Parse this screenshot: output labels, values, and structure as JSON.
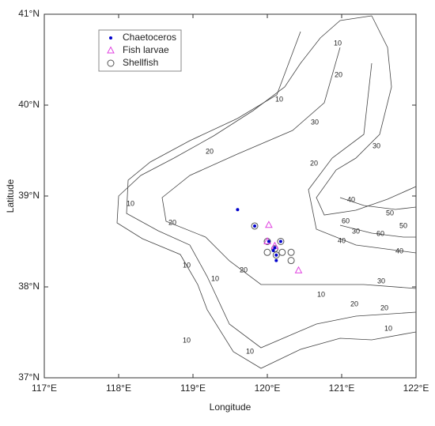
{
  "chart_data": {
    "type": "scatter",
    "xlabel": "Longitude",
    "ylabel": "Latitude",
    "xlim": [
      117,
      122
    ],
    "ylim": [
      37,
      41
    ],
    "xticks": [
      {
        "value": 117,
        "label": "117°E"
      },
      {
        "value": 118,
        "label": "118°E"
      },
      {
        "value": 119,
        "label": "119°E"
      },
      {
        "value": 120,
        "label": "120°E"
      },
      {
        "value": 121,
        "label": "121°E"
      },
      {
        "value": 122,
        "label": "122°E"
      }
    ],
    "yticks": [
      {
        "value": 37,
        "label": "37°N"
      },
      {
        "value": 38,
        "label": "38°N"
      },
      {
        "value": 39,
        "label": "39°N"
      },
      {
        "value": 40,
        "label": "40°N"
      },
      {
        "value": 41,
        "label": "41°N"
      }
    ],
    "legend": "upper left",
    "series": [
      {
        "name": "Chaetoceros",
        "color": "#0000cc",
        "marker": "dot",
        "x": [
          119.6,
          119.83,
          120.18,
          120.1,
          120.08,
          120.12,
          120.12,
          120.02
        ],
        "y": [
          38.85,
          38.67,
          38.5,
          38.43,
          38.4,
          38.35,
          38.29,
          38.5
        ]
      },
      {
        "name": "Fish larvae",
        "color": "#e040e0",
        "marker": "triangle",
        "x": [
          120.02,
          120.0,
          120.1,
          120.42
        ],
        "y": [
          38.68,
          38.5,
          38.45,
          38.18
        ]
      },
      {
        "name": "Shellfish",
        "color": "#555555",
        "marker": "circle",
        "x": [
          119.83,
          120.0,
          120.18,
          120.0,
          120.1,
          120.12,
          120.32,
          120.32,
          120.2
        ],
        "y": [
          38.67,
          38.5,
          38.5,
          38.38,
          38.42,
          38.35,
          38.38,
          38.29,
          38.38
        ]
      }
    ],
    "contour_labels": [
      10,
      10,
      20,
      30,
      20,
      20,
      30,
      10,
      20,
      10,
      10,
      20,
      40,
      30,
      40,
      60,
      50,
      50,
      60,
      40,
      30,
      20,
      10,
      20,
      10,
      10,
      10
    ]
  }
}
